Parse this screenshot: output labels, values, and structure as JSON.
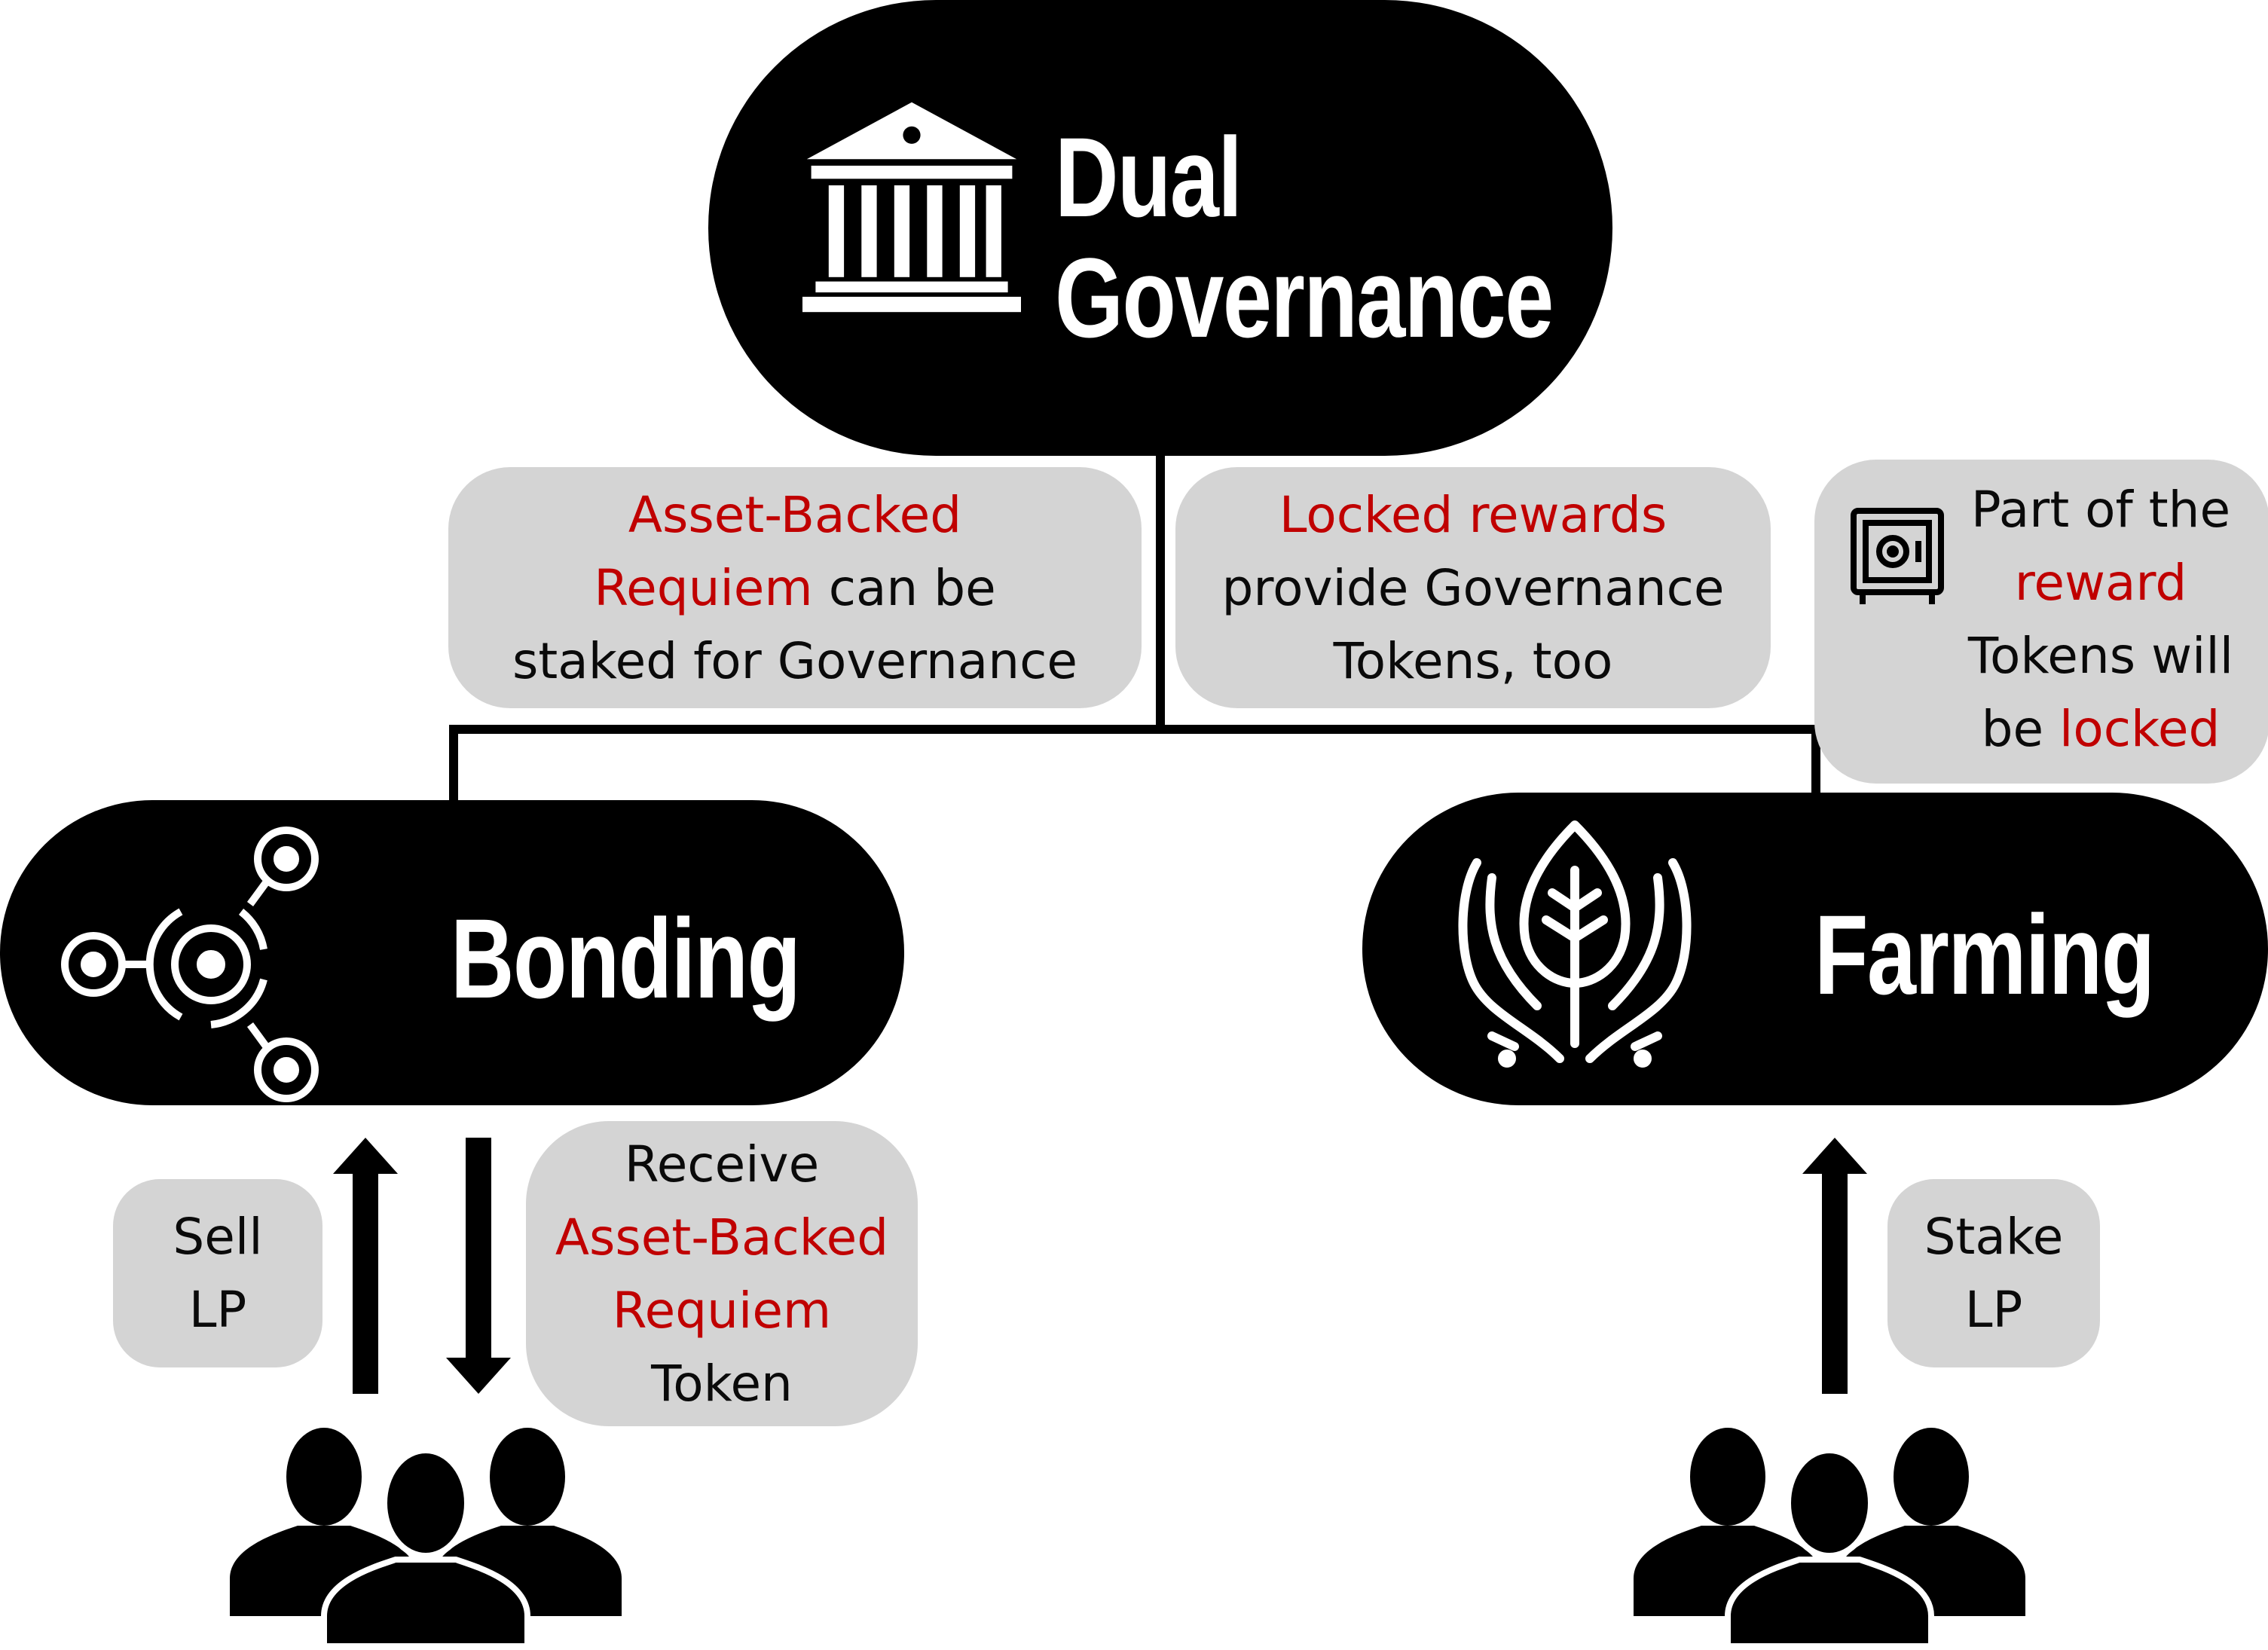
{
  "colors": {
    "node_fill": "#000000",
    "node_text": "#ffffff",
    "note_fill": "#d4d4d4",
    "highlight": "#c00000",
    "text": "#0a0a0a"
  },
  "top_node": {
    "line1": "Dual",
    "line2": "Governance",
    "icon": "bank-building-icon"
  },
  "bonding_node": {
    "label": "Bonding",
    "icon": "molecule-network-icon"
  },
  "farming_node": {
    "label": "Farming",
    "icon": "hands-leaf-icon"
  },
  "note_bonding_stake": {
    "red1": "Asset-Backed",
    "red2": "Requiem",
    "text2": " can be",
    "text3": "staked for Governance"
  },
  "note_locked_rewards": {
    "red1": "Locked rewards",
    "text2": "provide Governance",
    "text3": "Tokens, too"
  },
  "note_reward_lock": {
    "icon": "safe-icon",
    "text1": "Part of the",
    "red2": "reward",
    "text3": "Tokens will",
    "text4a": "be ",
    "red4": "locked"
  },
  "note_sell_lp": {
    "line1": "Sell",
    "line2": "LP"
  },
  "note_receive": {
    "text1": "Receive",
    "red2": "Asset-Backed",
    "red3": "Requiem",
    "text4": "Token"
  },
  "note_stake_lp": {
    "line1": "Stake",
    "line2": "LP"
  },
  "users_icon": "users-group-icon"
}
